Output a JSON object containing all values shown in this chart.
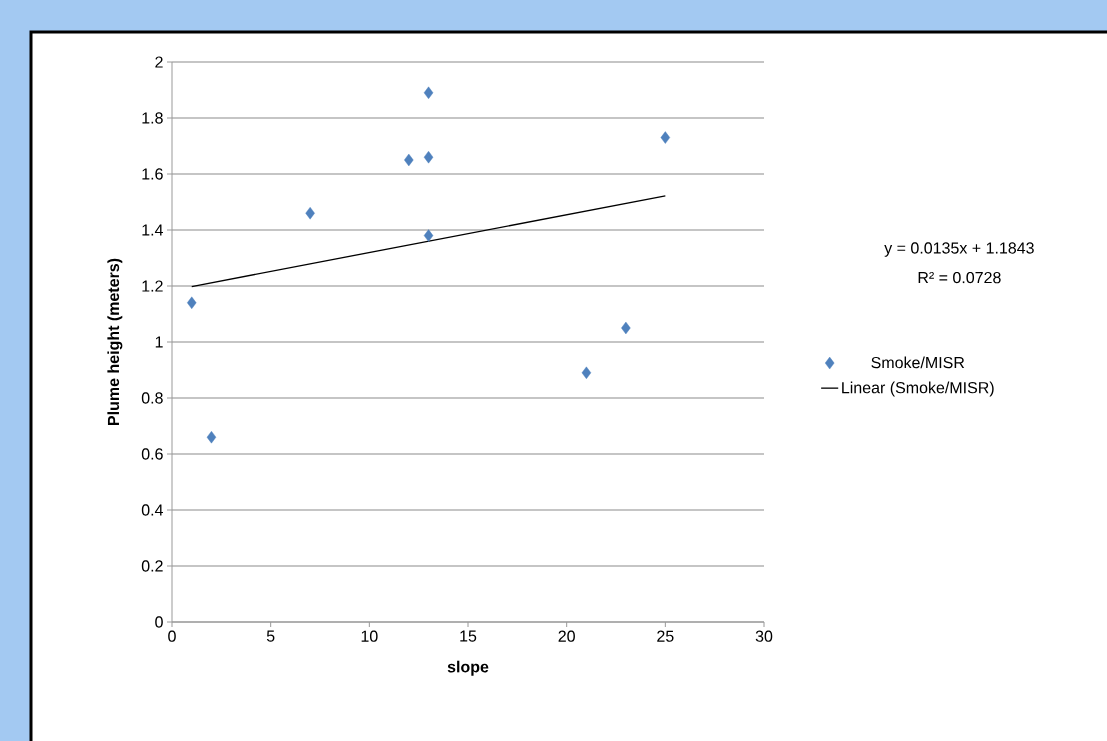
{
  "chart_data": {
    "type": "scatter",
    "xlabel": "slope",
    "ylabel": "Plume height (meters)",
    "annotations": [
      "y = 0.0135x + 1.1843",
      "R² = 0.0728"
    ],
    "series": [
      {
        "name": "Smoke/MISR",
        "color": "#4f81bd",
        "marker": "diamond",
        "x": [
          1,
          2,
          7,
          12,
          13,
          13,
          13,
          21,
          23,
          25
        ],
        "values": [
          1.14,
          0.66,
          1.46,
          1.65,
          1.89,
          1.66,
          1.38,
          0.89,
          1.05,
          1.73
        ]
      },
      {
        "name": "Linear (Smoke/MISR)",
        "type": "line",
        "color": "#000000",
        "marker": "none",
        "x": [
          1,
          25
        ],
        "values": [
          1.198,
          1.522
        ]
      }
    ],
    "xlim": [
      0,
      30
    ],
    "xticks": [
      0,
      5,
      10,
      15,
      20,
      25,
      30
    ],
    "ylim": [
      0,
      2
    ],
    "yticks": [
      0,
      0.2,
      0.4,
      0.6,
      0.8,
      1,
      1.2,
      1.4,
      1.6,
      1.8,
      2
    ],
    "grid": "y",
    "legend": "right"
  }
}
